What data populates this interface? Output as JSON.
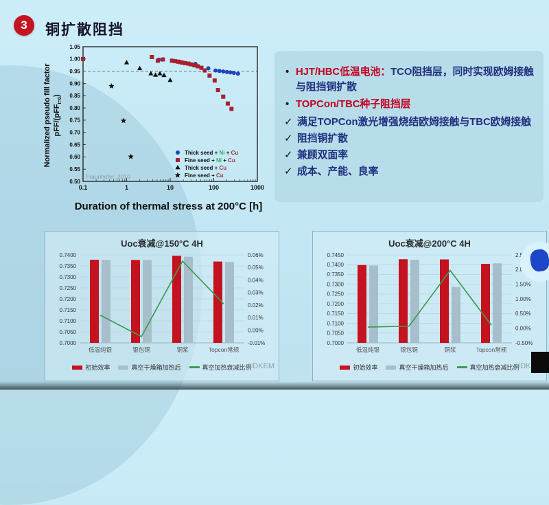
{
  "slide": {
    "badge": "3",
    "title": "铜扩散阻挡"
  },
  "panel": {
    "bullet_mark": "•",
    "check_mark": "✓",
    "bullets": [
      {
        "highlight": "HJT/HBC低温电池：",
        "rest": "TCO阻挡层，同时实现欧姆接触与阻挡铜扩散"
      },
      {
        "highlight": "TOPCon/TBC种子阻挡层",
        "rest": ""
      }
    ],
    "checks": [
      "满足TOPCon激光增强烧结欧姆接触与TBC欧姆接触",
      "阻挡铜扩散",
      "兼顾双面率",
      "成本、产能、良率"
    ]
  },
  "chart_data": [
    {
      "type": "scatter",
      "xlabel": "Duration of thermal stress at 200°C [h]",
      "ylabel_line1": "Normalized pseudo fill factor",
      "ylabel_line2_pre": "pFF/(pFF",
      "ylabel_sub": "t=0",
      "ylabel_line2_post": ")",
      "x_scale": "log",
      "xlim": [
        0.1,
        1000
      ],
      "ylim": [
        0.5,
        1.05
      ],
      "y_tick_step": 0.05,
      "x_ticks": [
        0.1,
        1,
        10,
        100,
        1000
      ],
      "dashed_line_y": 0.95,
      "annotation": "Fraunhofer,  2010",
      "series": [
        {
          "marker": "circle",
          "color": "#2144c0",
          "name_parts": [
            {
              "t": "Thick seed + ",
              "c": "#101010"
            },
            {
              "t": "Ni",
              "c": "#2fae4e"
            },
            {
              "t": " + ",
              "c": "#101010"
            },
            {
              "t": "Cu",
              "c": "#a23333"
            }
          ],
          "points": [
            [
              5.5,
              0.997
            ],
            [
              12,
              0.991
            ],
            [
              38,
              0.98
            ],
            [
              75,
              0.962
            ],
            [
              110,
              0.953
            ],
            [
              135,
              0.951
            ],
            [
              165,
              0.949
            ],
            [
              200,
              0.947
            ],
            [
              240,
              0.945
            ],
            [
              290,
              0.943
            ],
            [
              360,
              0.94
            ]
          ]
        },
        {
          "marker": "square",
          "color": "#a92031",
          "name_parts": [
            {
              "t": "Fine seed + ",
              "c": "#101010"
            },
            {
              "t": "Ni",
              "c": "#2fae4e"
            },
            {
              "t": " + ",
              "c": "#101010"
            },
            {
              "t": "Cu",
              "c": "#a23333"
            }
          ],
          "points": [
            [
              0.1,
              1.0
            ],
            [
              3.8,
              1.008
            ],
            [
              5.2,
              0.993
            ],
            [
              6.8,
              0.998
            ],
            [
              11,
              0.993
            ],
            [
              13,
              0.991
            ],
            [
              15,
              0.989
            ],
            [
              17,
              0.987
            ],
            [
              19,
              0.985
            ],
            [
              22,
              0.983
            ],
            [
              26,
              0.981
            ],
            [
              30,
              0.978
            ],
            [
              36,
              0.974
            ],
            [
              43,
              0.97
            ],
            [
              52,
              0.964
            ],
            [
              62,
              0.953
            ],
            [
              80,
              0.932
            ],
            [
              105,
              0.912
            ],
            [
              125,
              0.873
            ],
            [
              165,
              0.846
            ],
            [
              210,
              0.818
            ],
            [
              255,
              0.796
            ]
          ]
        },
        {
          "marker": "triangle",
          "color": "#111111",
          "name_parts": [
            {
              "t": "Thick seed + ",
              "c": "#101010"
            },
            {
              "t": "Cu",
              "c": "#a23333"
            }
          ],
          "points": [
            [
              1.0,
              0.985
            ],
            [
              2.0,
              0.961
            ],
            [
              3.6,
              0.94
            ],
            [
              4.6,
              0.934
            ],
            [
              5.8,
              0.94
            ],
            [
              7.2,
              0.933
            ],
            [
              10,
              0.913
            ]
          ]
        },
        {
          "marker": "star",
          "color": "#111111",
          "name_parts": [
            {
              "t": "Fine seed + ",
              "c": "#101010"
            },
            {
              "t": "Cu",
              "c": "#a23333"
            }
          ],
          "points": [
            [
              0.45,
              0.889
            ],
            [
              0.85,
              0.748
            ],
            [
              1.25,
              0.601
            ]
          ]
        }
      ]
    },
    {
      "type": "bar+line",
      "title": "Uoc衰减@150°C 4H",
      "categories": [
        "低温纯银",
        "银包铜",
        "铜浆",
        "Topcon常规"
      ],
      "left_axis": {
        "min": 0.7,
        "max": 0.74,
        "step": 0.005
      },
      "right_axis": {
        "min": -0.01,
        "max": 0.06,
        "step": 0.01
      },
      "series": [
        {
          "name": "初始效率",
          "type": "bar",
          "axis": "left",
          "color": "#c4121f",
          "values": [
            0.7378,
            0.7377,
            0.7396,
            0.737
          ]
        },
        {
          "name": "真空干燥箱加热后",
          "type": "bar",
          "axis": "left",
          "color": "#a7bfca",
          "values": [
            0.7377,
            0.7377,
            0.7392,
            0.7368
          ]
        },
        {
          "name": "真空加热衰减比例",
          "type": "line",
          "axis": "right",
          "color": "#3f9b52",
          "values": [
            0.012,
            -0.005,
            0.055,
            0.021
          ]
        }
      ],
      "watermark": "©DKEM"
    },
    {
      "type": "bar+line",
      "title": "Uoc衰减@200°C 4H",
      "categories": [
        "低温纯银",
        "银包铜",
        "铜浆",
        "Topcon常规"
      ],
      "left_axis": {
        "min": 0.7,
        "max": 0.745,
        "step": 0.005
      },
      "right_axis": {
        "min": -0.5,
        "max": 2.5,
        "step": 0.5
      },
      "series": [
        {
          "name": "初始效率",
          "type": "bar",
          "axis": "left",
          "color": "#c4121f",
          "values": [
            0.7398,
            0.7428,
            0.7427,
            0.7404
          ]
        },
        {
          "name": "真空干燥箱加热后",
          "type": "bar",
          "axis": "left",
          "color": "#a7bfca",
          "values": [
            0.7396,
            0.7425,
            0.7286,
            0.7407
          ]
        },
        {
          "name": "真空加热衰减比例",
          "type": "line",
          "axis": "right",
          "color": "#3f9b52",
          "values": [
            0.04,
            0.07,
            1.97,
            0.1
          ]
        }
      ],
      "watermark": "©DKEM"
    }
  ]
}
